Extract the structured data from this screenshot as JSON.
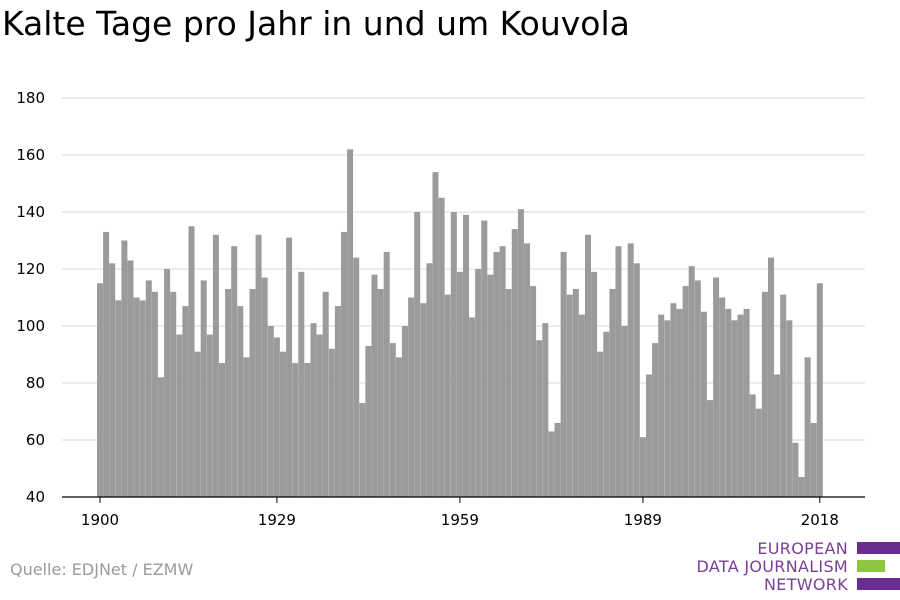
{
  "title": "Kalte Tage pro Jahr in und um Kouvola",
  "source": "Quelle: EDJNet / EZMW",
  "logo": {
    "line1": "EUROPEAN",
    "line2": "DATA JOURNALISM",
    "line3": "NETWORK",
    "colors": {
      "purple": "#6c2b8f",
      "green": "#8dc63f"
    }
  },
  "chart_data": {
    "type": "bar",
    "title": "Kalte Tage pro Jahr in und um Kouvola",
    "xlabel": "",
    "ylabel": "",
    "bar_color": "#9b9b9b",
    "grid": true,
    "ylim": [
      40,
      180
    ],
    "yticks": [
      40,
      60,
      80,
      100,
      120,
      140,
      160,
      180
    ],
    "xticks": [
      1900,
      1929,
      1959,
      1989,
      2018
    ],
    "x_start": 1900,
    "values": [
      115,
      133,
      122,
      109,
      130,
      123,
      110,
      109,
      116,
      112,
      82,
      120,
      112,
      97,
      107,
      135,
      91,
      116,
      97,
      132,
      87,
      113,
      128,
      107,
      89,
      113,
      132,
      117,
      100,
      96,
      91,
      131,
      87,
      119,
      87,
      101,
      97,
      112,
      92,
      107,
      133,
      162,
      124,
      73,
      93,
      118,
      113,
      126,
      94,
      89,
      100,
      110,
      140,
      108,
      122,
      154,
      145,
      111,
      140,
      119,
      139,
      103,
      120,
      137,
      118,
      126,
      128,
      113,
      134,
      141,
      129,
      114,
      95,
      101,
      63,
      66,
      126,
      111,
      113,
      104,
      132,
      119,
      91,
      98,
      113,
      128,
      100,
      129,
      122,
      61,
      83,
      94,
      104,
      102,
      108,
      106,
      114,
      121,
      116,
      105,
      74,
      117,
      110,
      106,
      102,
      104,
      106,
      76,
      71,
      112,
      124,
      83,
      111,
      102,
      59,
      47,
      89,
      66,
      115
    ]
  }
}
